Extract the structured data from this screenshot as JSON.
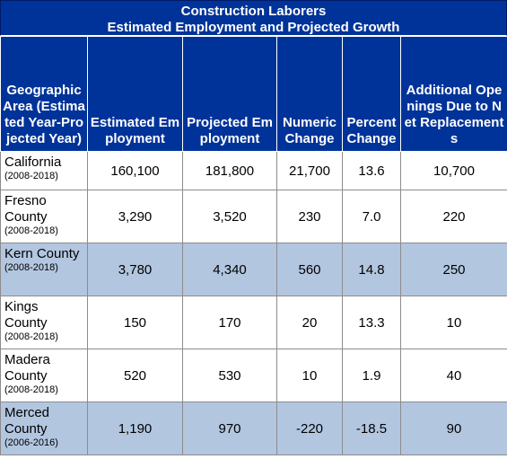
{
  "title": {
    "line1": "Construction Laborers",
    "line2": "Estimated Employment and Projected Growth"
  },
  "columns": [
    "Geographic Area (Estimated Year-Projected Year)",
    "Estimated Employment",
    "Projected Employment",
    "Numeric Change",
    "Percent Change",
    "Additional Openings Due to Net Replacements"
  ],
  "rows": [
    {
      "area": "California",
      "years": "(2008-2018)",
      "est": "160,100",
      "proj": "181,800",
      "num": "21,700",
      "pct": "13.6",
      "add": "10,700"
    },
    {
      "area": "Fresno County",
      "years": "(2008-2018)",
      "est": "3,290",
      "proj": "3,520",
      "num": "230",
      "pct": "7.0",
      "add": "220"
    },
    {
      "area": "Kern County",
      "years": "(2008-2018)",
      "est": "3,780",
      "proj": "4,340",
      "num": "560",
      "pct": "14.8",
      "add": "250"
    },
    {
      "area": "Kings County",
      "years": "(2008-2018)",
      "est": "150",
      "proj": "170",
      "num": "20",
      "pct": "13.3",
      "add": "10"
    },
    {
      "area": "Madera County",
      "years": "(2008-2018)",
      "est": "520",
      "proj": "530",
      "num": "10",
      "pct": "1.9",
      "add": "40"
    },
    {
      "area": "Merced County",
      "years": "(2006-2016)",
      "est": "1,190",
      "proj": "970",
      "num": "-220",
      "pct": "-18.5",
      "add": "90"
    }
  ],
  "colors": {
    "header_bg": "#003399",
    "header_text": "#ffffff",
    "row_shade": "#b3c6e0"
  }
}
